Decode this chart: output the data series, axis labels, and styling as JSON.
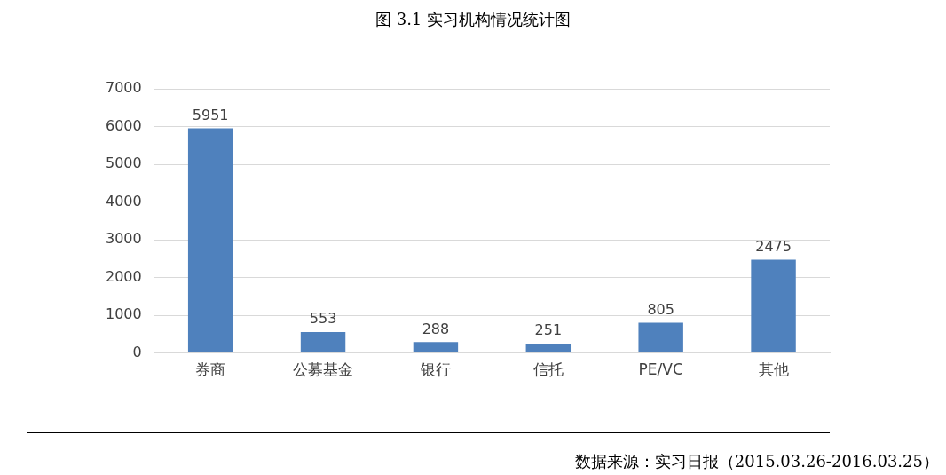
{
  "chart_data": {
    "type": "bar",
    "title": "图 3.1 实习机构情况统计图",
    "categories": [
      "券商",
      "公募基金",
      "银行",
      "信托",
      "PE/VC",
      "其他"
    ],
    "values": [
      5951,
      553,
      288,
      251,
      805,
      2475
    ],
    "color": "#4f81bd",
    "ylim": [
      0,
      7000
    ],
    "yticks": [
      0,
      1000,
      2000,
      3000,
      4000,
      5000,
      6000,
      7000
    ],
    "grid": "y",
    "data_labels": true,
    "annotations": [
      "数据来源：实习日报（2015.03.26-2016.03.25）"
    ]
  }
}
